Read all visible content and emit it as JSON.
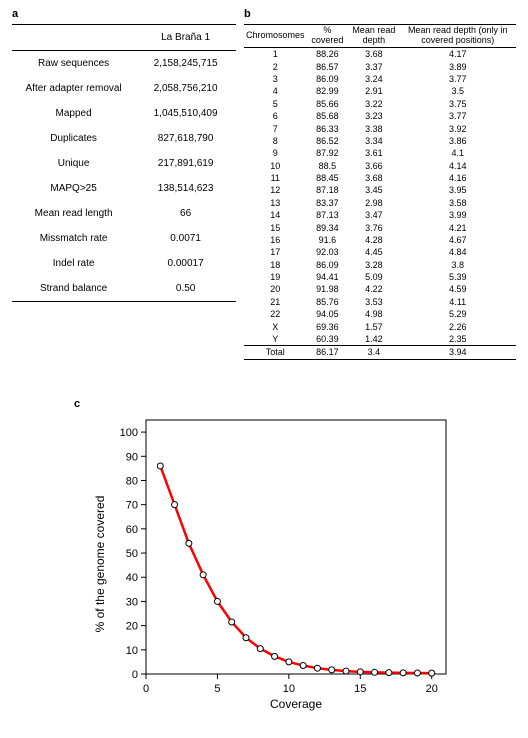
{
  "panel_a": {
    "label": "a",
    "header_blank": "",
    "header_value": "La Braña 1",
    "rows": [
      {
        "label": "Raw sequences",
        "value": "2,158,245,715"
      },
      {
        "label": "After adapter removal",
        "value": "2,058,756,210"
      },
      {
        "label": "Mapped",
        "value": "1,045,510,409"
      },
      {
        "label": "Duplicates",
        "value": "827,618,790"
      },
      {
        "label": "Unique",
        "value": "217,891,619"
      },
      {
        "label": "MAPQ>25",
        "value": "138,514,623"
      },
      {
        "label": "Mean read length",
        "value": "66"
      },
      {
        "label": "Missmatch rate",
        "value": "0.0071"
      },
      {
        "label": "Indel rate",
        "value": "0.00017"
      },
      {
        "label": "Strand balance",
        "value": "0.50"
      }
    ]
  },
  "panel_b": {
    "label": "b",
    "headers": [
      "Chromosomes",
      "% covered",
      "Mean read depth",
      "Mean read depth (only in covered positions)"
    ],
    "rows": [
      [
        "1",
        "88.26",
        "3.68",
        "4.17"
      ],
      [
        "2",
        "86.57",
        "3.37",
        "3.89"
      ],
      [
        "3",
        "86.09",
        "3.24",
        "3.77"
      ],
      [
        "4",
        "82.99",
        "2.91",
        "3.5"
      ],
      [
        "5",
        "85.66",
        "3.22",
        "3.75"
      ],
      [
        "6",
        "85.68",
        "3.23",
        "3.77"
      ],
      [
        "7",
        "86.33",
        "3.38",
        "3.92"
      ],
      [
        "8",
        "86.52",
        "3.34",
        "3.86"
      ],
      [
        "9",
        "87.92",
        "3.61",
        "4.1"
      ],
      [
        "10",
        "88.5",
        "3.66",
        "4.14"
      ],
      [
        "11",
        "88.45",
        "3.68",
        "4.16"
      ],
      [
        "12",
        "87.18",
        "3.45",
        "3.95"
      ],
      [
        "13",
        "83.37",
        "2.98",
        "3.58"
      ],
      [
        "14",
        "87.13",
        "3.47",
        "3.99"
      ],
      [
        "15",
        "89.34",
        "3.76",
        "4.21"
      ],
      [
        "16",
        "91.6",
        "4.28",
        "4.67"
      ],
      [
        "17",
        "92.03",
        "4.45",
        "4.84"
      ],
      [
        "18",
        "86.09",
        "3.28",
        "3.8"
      ],
      [
        "19",
        "94.41",
        "5.09",
        "5.39"
      ],
      [
        "20",
        "91.98",
        "4.22",
        "4.59"
      ],
      [
        "21",
        "85.76",
        "3.53",
        "4.11"
      ],
      [
        "22",
        "94.05",
        "4.98",
        "5.29"
      ],
      [
        "X",
        "69.36",
        "1.57",
        "2.26"
      ],
      [
        "Y",
        "60.39",
        "1.42",
        "2.35"
      ]
    ],
    "total_row": [
      "Total",
      "86.17",
      "3.4",
      "3.94"
    ]
  },
  "panel_c": {
    "label": "c",
    "type": "line",
    "x_label": "Coverage",
    "y_label": "% of the genome covered",
    "xlim": [
      0,
      21
    ],
    "ylim": [
      0,
      105
    ],
    "x_ticks": [
      0,
      5,
      10,
      15,
      20
    ],
    "y_ticks": [
      0,
      10,
      20,
      30,
      40,
      50,
      60,
      70,
      80,
      90,
      100
    ],
    "line_color": "#ff0000",
    "line_width": 2.5,
    "marker_style": "circle",
    "marker_size": 3,
    "marker_fill": "#ffffff",
    "marker_stroke": "#000000",
    "axis_box": true,
    "background_color": "#ffffff",
    "label_fontsize": 12,
    "tick_fontsize": 11,
    "data": [
      {
        "x": 1,
        "y": 86
      },
      {
        "x": 2,
        "y": 70
      },
      {
        "x": 3,
        "y": 54
      },
      {
        "x": 4,
        "y": 41
      },
      {
        "x": 5,
        "y": 30
      },
      {
        "x": 6,
        "y": 21.5
      },
      {
        "x": 7,
        "y": 15
      },
      {
        "x": 8,
        "y": 10.5
      },
      {
        "x": 9,
        "y": 7.3
      },
      {
        "x": 10,
        "y": 5
      },
      {
        "x": 11,
        "y": 3.5
      },
      {
        "x": 12,
        "y": 2.4
      },
      {
        "x": 13,
        "y": 1.7
      },
      {
        "x": 14,
        "y": 1.2
      },
      {
        "x": 15,
        "y": 0.9
      },
      {
        "x": 16,
        "y": 0.7
      },
      {
        "x": 17,
        "y": 0.55
      },
      {
        "x": 18,
        "y": 0.45
      },
      {
        "x": 19,
        "y": 0.4
      },
      {
        "x": 20,
        "y": 0.35
      }
    ]
  }
}
